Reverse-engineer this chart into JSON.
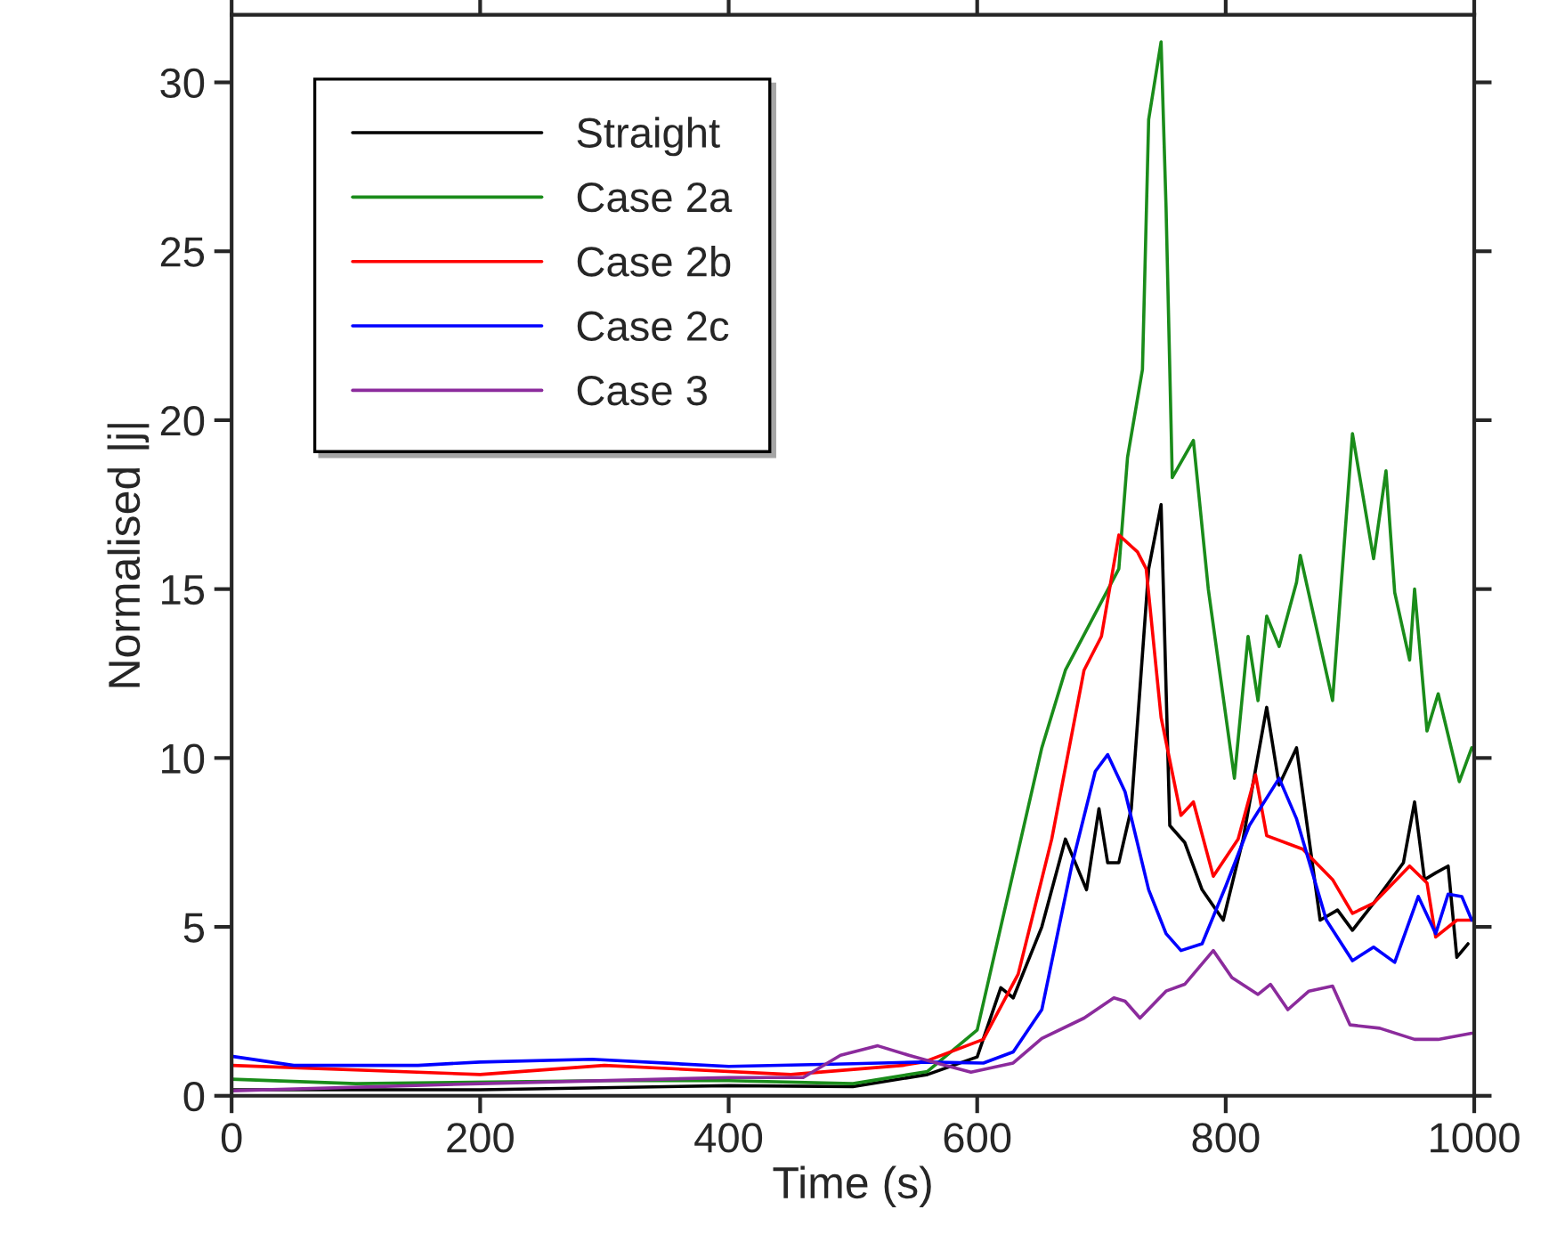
{
  "chart_data": {
    "type": "line",
    "xlabel": "Time (s)",
    "ylabel": "Normalised |j|",
    "xlim": [
      0,
      1000
    ],
    "ylim": [
      0,
      32
    ],
    "xticks": [
      0,
      200,
      400,
      600,
      800,
      1000
    ],
    "yticks": [
      0,
      5,
      10,
      15,
      20,
      25,
      30
    ],
    "grid": false,
    "legend": "top left",
    "marker": "none",
    "line_style": "solid",
    "series": [
      {
        "name": "Straight",
        "color": "#000000",
        "x": [
          0,
          200,
          400,
          500,
          560,
          600,
          619,
          629,
          652,
          671,
          688,
          698,
          705,
          714,
          724,
          738,
          748,
          755,
          767,
          781,
          798,
          814,
          833,
          843,
          857,
          876,
          890,
          902,
          919,
          943,
          952,
          960,
          969,
          979,
          986,
          995
        ],
        "values": [
          0.18,
          0.18,
          0.3,
          0.27,
          0.63,
          1.15,
          3.2,
          2.9,
          5.0,
          7.6,
          6.1,
          8.5,
          6.9,
          6.9,
          8.5,
          15.6,
          17.5,
          8.0,
          7.5,
          6.1,
          5.2,
          7.6,
          11.5,
          9.2,
          10.3,
          5.2,
          5.5,
          4.9,
          5.7,
          6.9,
          8.7,
          6.4,
          6.6,
          6.8,
          4.1,
          4.5
        ]
      },
      {
        "name": "Case 2a",
        "color": "#1a8c1a",
        "x": [
          0,
          100,
          300,
          400,
          500,
          560,
          600,
          652,
          671,
          714,
          721,
          733,
          738,
          748,
          752,
          757,
          774,
          786,
          807,
          818,
          826,
          833,
          843,
          857,
          860,
          886,
          902,
          919,
          929,
          936,
          948,
          952,
          962,
          971,
          988,
          998
        ],
        "values": [
          0.49,
          0.36,
          0.45,
          0.45,
          0.36,
          0.72,
          1.95,
          10.3,
          12.6,
          15.6,
          18.9,
          21.5,
          28.9,
          31.2,
          26.3,
          18.3,
          19.4,
          15.0,
          9.4,
          13.6,
          11.7,
          14.2,
          13.3,
          15.2,
          16.0,
          11.7,
          19.6,
          15.9,
          18.5,
          14.9,
          12.9,
          15.0,
          10.8,
          11.9,
          9.3,
          10.3
        ]
      },
      {
        "name": "Case 2b",
        "color": "#ff0000",
        "x": [
          0,
          200,
          300,
          450,
          540,
          557,
          605,
          633,
          660,
          686,
          700,
          714,
          729,
          736,
          748,
          764,
          774,
          790,
          810,
          824,
          833,
          862,
          886,
          902,
          919,
          948,
          962,
          969,
          986,
          998
        ],
        "values": [
          0.9,
          0.63,
          0.9,
          0.63,
          0.9,
          1.0,
          1.67,
          3.6,
          7.6,
          12.6,
          13.6,
          16.6,
          16.1,
          15.6,
          11.2,
          8.3,
          8.7,
          6.5,
          7.6,
          9.5,
          7.7,
          7.3,
          6.4,
          5.4,
          5.7,
          6.8,
          6.3,
          4.7,
          5.2,
          5.2
        ]
      },
      {
        "name": "Case 2c",
        "color": "#0000ff",
        "x": [
          0,
          50,
          150,
          200,
          290,
          400,
          500,
          557,
          605,
          629,
          652,
          676,
          695,
          705,
          719,
          738,
          752,
          764,
          781,
          800,
          819,
          843,
          857,
          881,
          902,
          919,
          936,
          955,
          969,
          979,
          990,
          998
        ],
        "values": [
          1.17,
          0.9,
          0.9,
          1.0,
          1.08,
          0.87,
          0.95,
          1.0,
          0.97,
          1.3,
          2.55,
          6.8,
          9.6,
          10.1,
          9.0,
          6.1,
          4.8,
          4.3,
          4.5,
          6.2,
          8.0,
          9.4,
          8.2,
          5.2,
          4.0,
          4.4,
          3.95,
          5.9,
          4.8,
          5.97,
          5.9,
          5.2
        ]
      },
      {
        "name": "Case 3",
        "color": "#8b2b9c",
        "x": [
          0,
          200,
          400,
          460,
          490,
          520,
          545,
          570,
          595,
          629,
          652,
          686,
          710,
          719,
          731,
          752,
          767,
          790,
          805,
          826,
          836,
          850,
          867,
          886,
          900,
          924,
          952,
          971,
          998
        ],
        "values": [
          0.15,
          0.36,
          0.54,
          0.54,
          1.2,
          1.48,
          1.2,
          0.94,
          0.7,
          0.97,
          1.7,
          2.3,
          2.9,
          2.8,
          2.3,
          3.1,
          3.3,
          4.3,
          3.5,
          3.0,
          3.3,
          2.55,
          3.1,
          3.25,
          2.1,
          2.0,
          1.67,
          1.67,
          1.85
        ]
      }
    ]
  }
}
